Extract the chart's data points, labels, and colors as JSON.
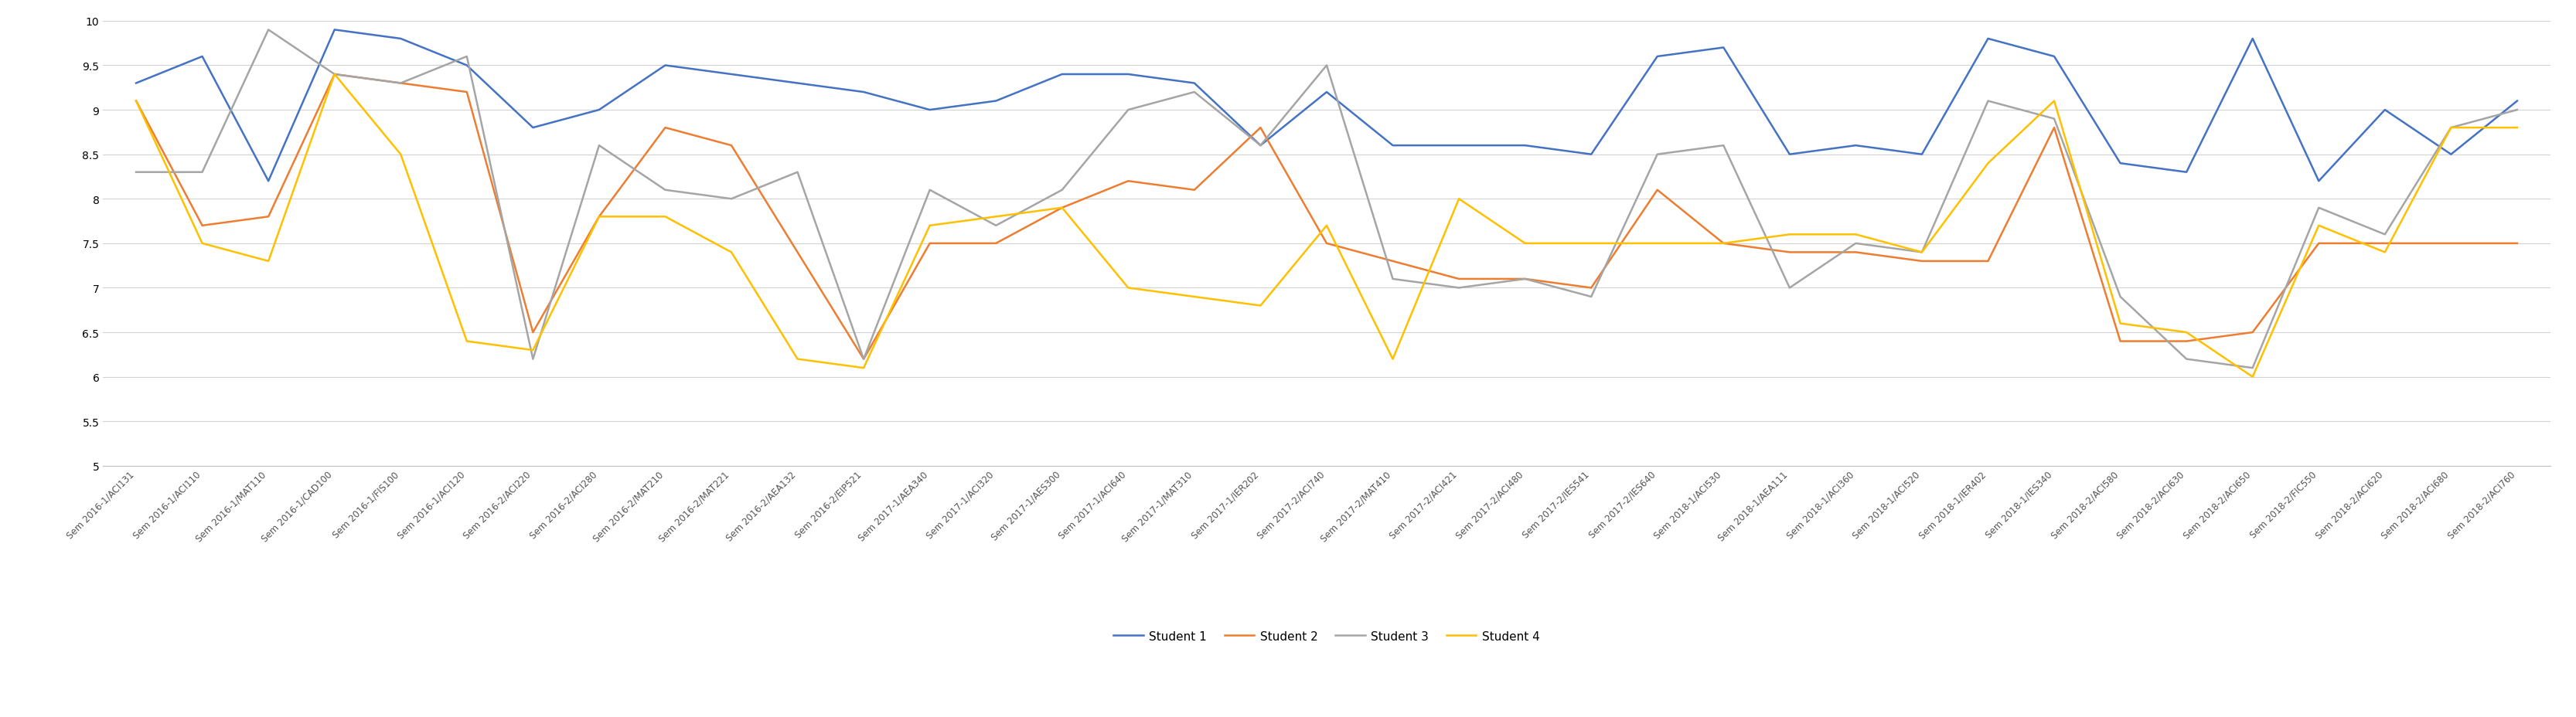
{
  "categories": [
    "Sem 2016-1/ACI131",
    "Sem 2016-1/ACI110",
    "Sem 2016-1/MAT110",
    "Sem 2016-1/CAD100",
    "Sem 2016-1/FIS100",
    "Sem 2016-1/ACI120",
    "Sem 2016-2/ACI220",
    "Sem 2016-2/ACI280",
    "Sem 2016-2/MAT210",
    "Sem 2016-2/MAT221",
    "Sem 2016-2/AEA132",
    "Sem 2016-2/EIP521",
    "Sem 2017-1/AEA340",
    "Sem 2017-1/ACI320",
    "Sem 2017-1/AES300",
    "Sem 2017-1/ACI640",
    "Sem 2017-1/MAT310",
    "Sem 2017-1/IER202",
    "Sem 2017-2/ACI740",
    "Sem 2017-2/MAT410",
    "Sem 2017-2/ACI421",
    "Sem 2017-2/ACI480",
    "Sem 2017-2/IES541",
    "Sem 2017-2/IES640",
    "Sem 2018-1/ACI530",
    "Sem 2018-1/AEA111",
    "Sem 2018-1/ACI360",
    "Sem 2018-1/ACI520",
    "Sem 2018-1/IER402",
    "Sem 2018-1/IES340",
    "Sem 2018-2/ACI580",
    "Sem 2018-2/ACI630",
    "Sem 2018-2/ACI650",
    "Sem 2018-2/FIC550",
    "Sem 2018-2/ACI620",
    "Sem 2018-2/ACI680",
    "Sem 2018-2/ACI760"
  ],
  "student1": [
    9.3,
    9.6,
    8.2,
    9.9,
    9.8,
    9.5,
    8.8,
    9.0,
    9.5,
    9.4,
    9.3,
    9.2,
    9.0,
    9.1,
    9.4,
    9.4,
    9.3,
    8.6,
    9.2,
    8.6,
    8.6,
    8.6,
    8.5,
    9.6,
    9.7,
    8.5,
    8.6,
    8.5,
    9.8,
    9.6,
    8.4,
    8.3,
    9.8,
    8.2,
    9.0,
    8.5,
    9.1
  ],
  "student2": [
    9.1,
    7.7,
    7.8,
    9.4,
    9.3,
    9.2,
    6.5,
    7.8,
    8.8,
    8.6,
    7.4,
    6.2,
    7.5,
    7.5,
    7.9,
    8.2,
    8.1,
    8.8,
    7.5,
    7.3,
    7.1,
    7.1,
    7.0,
    8.1,
    7.5,
    7.4,
    7.4,
    7.3,
    7.3,
    8.8,
    6.4,
    6.4,
    6.5,
    7.5,
    7.5,
    7.5,
    7.5
  ],
  "student3": [
    8.3,
    8.3,
    9.9,
    9.4,
    9.3,
    9.6,
    6.2,
    8.6,
    8.1,
    8.0,
    8.3,
    6.2,
    8.1,
    7.7,
    8.1,
    9.0,
    9.2,
    8.6,
    9.5,
    7.1,
    7.0,
    7.1,
    6.9,
    8.5,
    8.6,
    7.0,
    7.5,
    7.4,
    9.1,
    8.9,
    6.9,
    6.2,
    6.1,
    7.9,
    7.6,
    8.8,
    9.0
  ],
  "student4": [
    9.1,
    7.5,
    7.3,
    9.4,
    8.5,
    6.4,
    6.3,
    7.8,
    7.8,
    7.4,
    6.2,
    6.1,
    7.7,
    7.8,
    7.9,
    7.0,
    6.9,
    6.8,
    7.7,
    6.2,
    8.0,
    7.5,
    7.5,
    7.5,
    7.5,
    7.6,
    7.6,
    7.4,
    8.4,
    9.1,
    6.6,
    6.5,
    6.0,
    7.7,
    7.4,
    8.8,
    8.8
  ],
  "student1_color": "#4472C4",
  "student2_color": "#ED7D31",
  "student3_color": "#A5A5A5",
  "student4_color": "#FFC000",
  "ylim": [
    5,
    10
  ],
  "yticks": [
    5,
    5.5,
    6,
    6.5,
    7,
    7.5,
    8,
    8.5,
    9,
    9.5,
    10
  ],
  "legend_labels": [
    "Student 1",
    "Student 2",
    "Student 3",
    "Student 4"
  ],
  "line_width": 1.8,
  "background_color": "#ffffff",
  "grid_color": "#d3d3d3",
  "border_color": "#c0c0c0"
}
